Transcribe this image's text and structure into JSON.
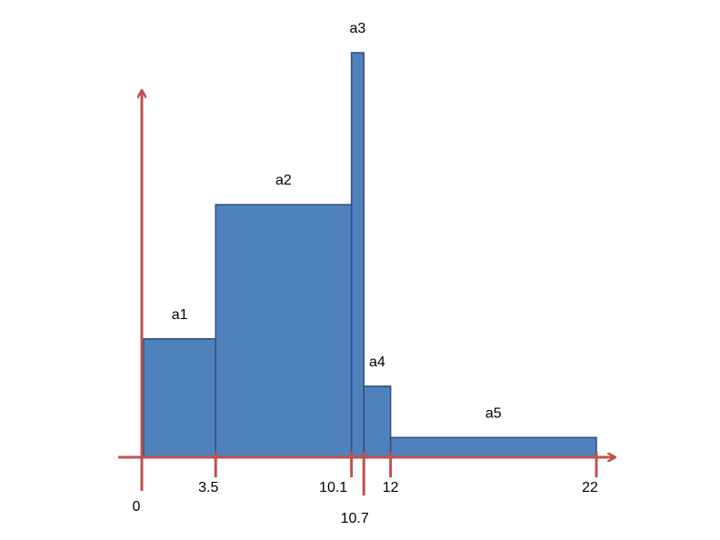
{
  "chart_data": {
    "type": "bar",
    "variant": "histogram-variable-width",
    "bins": [
      {
        "label": "a1",
        "x0": 0,
        "x1": 3.5,
        "height": 6.0
      },
      {
        "label": "a2",
        "x0": 3.5,
        "x1": 10.1,
        "height": 12.8
      },
      {
        "label": "a3",
        "x0": 10.1,
        "x1": 10.7,
        "height": 20.5
      },
      {
        "label": "a4",
        "x0": 10.7,
        "x1": 12,
        "height": 3.6
      },
      {
        "label": "a5",
        "x0": 12,
        "x1": 22,
        "height": 1.0
      }
    ],
    "x_ticks": [
      {
        "value": 0,
        "label": "0",
        "row": 2
      },
      {
        "value": 3.5,
        "label": "3.5",
        "row": 1
      },
      {
        "value": 10.1,
        "label": "10.1",
        "row": 1
      },
      {
        "value": 10.7,
        "label": "10.7",
        "row": 3
      },
      {
        "value": 12,
        "label": "12",
        "row": 1
      },
      {
        "value": 22,
        "label": "22",
        "row": 1
      }
    ],
    "xlim": [
      0,
      22
    ],
    "ylim": [
      0,
      20.5
    ],
    "title": "",
    "xlabel": "",
    "ylabel": "",
    "grid": false,
    "legend": "none",
    "colors": {
      "bar": "#4f81bd",
      "bar_edge": "#2e4f78",
      "axis": "#c0504d",
      "text": "#000000"
    }
  }
}
